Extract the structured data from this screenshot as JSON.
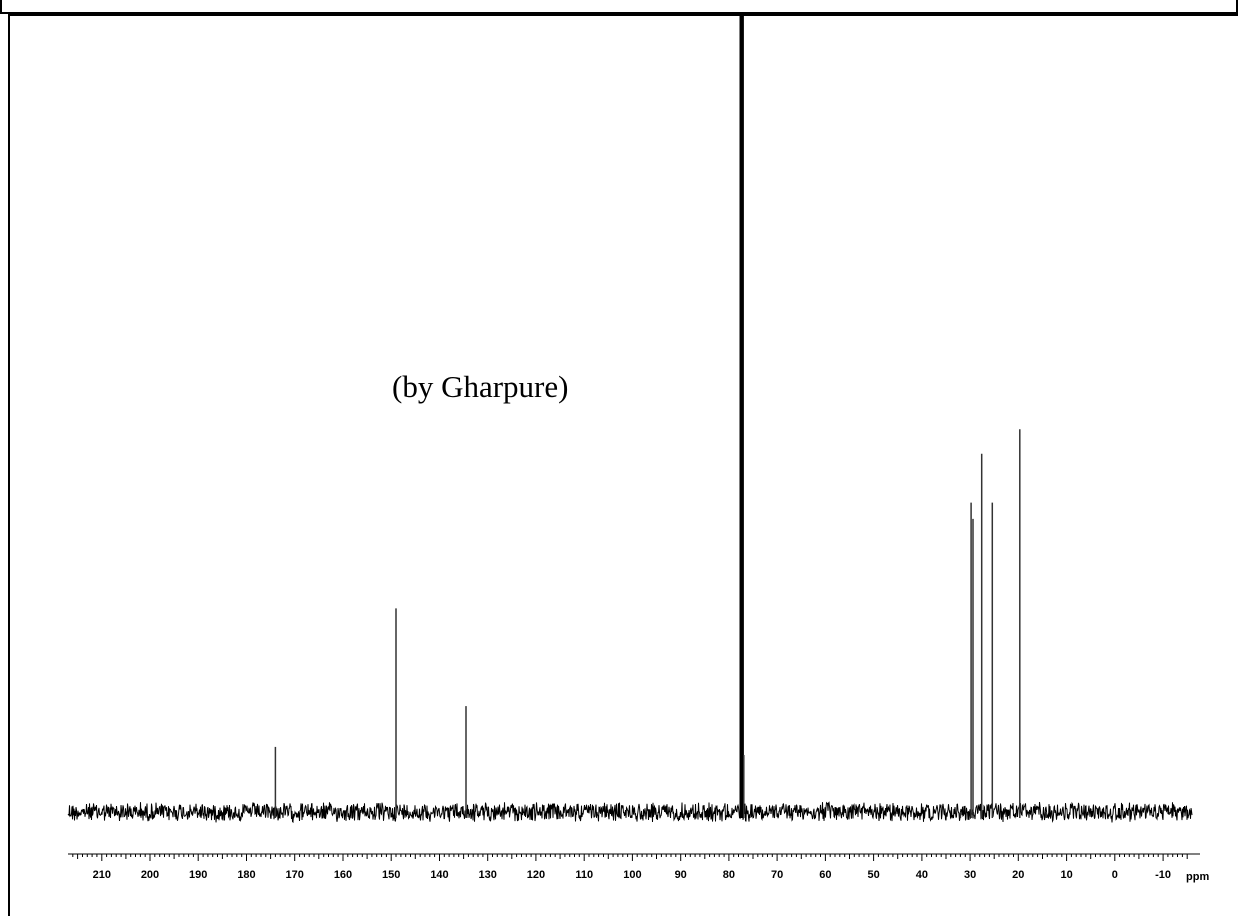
{
  "chart_data": {
    "type": "line",
    "title": "",
    "annotation": "(by Gharpure)",
    "xlabel": "ppm",
    "x_reversed": true,
    "xlim": [
      217,
      -16
    ],
    "ylim": [
      0,
      1
    ],
    "major_ticks": [
      210,
      200,
      190,
      180,
      170,
      160,
      150,
      140,
      130,
      120,
      110,
      100,
      90,
      80,
      70,
      60,
      50,
      40,
      30,
      20,
      10,
      0,
      -10
    ],
    "tick_labels": [
      "210",
      "200",
      "190",
      "180",
      "170",
      "160",
      "150",
      "140",
      "130",
      "120",
      "110",
      "100",
      "90",
      "80",
      "70",
      "60",
      "50",
      "40",
      "30",
      "20",
      "10",
      "0",
      "-10"
    ],
    "x_unit": "ppm",
    "baseline": 0.02,
    "noise": 0.012,
    "peaks": [
      {
        "ppm": 174.0,
        "height": 0.1
      },
      {
        "ppm": 149.0,
        "height": 0.27
      },
      {
        "ppm": 134.5,
        "height": 0.15
      },
      {
        "ppm": 77.5,
        "height": 1.0
      },
      {
        "ppm": 77.2,
        "height": 1.0
      },
      {
        "ppm": 76.9,
        "height": 0.09
      },
      {
        "ppm": 29.8,
        "height": 0.4
      },
      {
        "ppm": 29.4,
        "height": 0.38
      },
      {
        "ppm": 27.6,
        "height": 0.46
      },
      {
        "ppm": 25.4,
        "height": 0.4
      },
      {
        "ppm": 19.7,
        "height": 0.49
      },
      {
        "ppm": 32.0,
        "height": 0.02
      },
      {
        "ppm": 14.2,
        "height": 0.02
      }
    ]
  }
}
